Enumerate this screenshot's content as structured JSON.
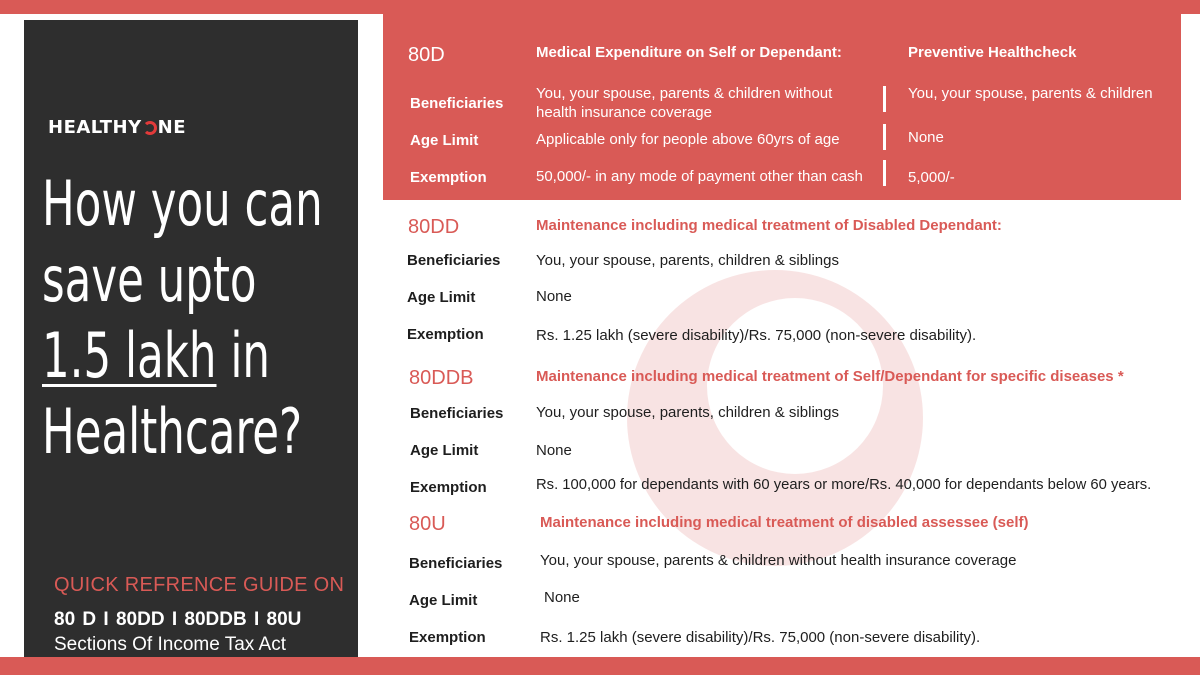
{
  "colors": {
    "accent": "#d95a56",
    "panel": "#2e2e2e",
    "text": "#1e1e1e"
  },
  "left": {
    "logo": {
      "before": "HEALTHY",
      "after": "NE",
      "icon": "crescent-o-icon"
    },
    "headline": {
      "line1": "How you can",
      "line2": "save upto",
      "line3_underlined": "1.5 lakh",
      "line3_rest": " in",
      "line4": "Healthcare?"
    },
    "guide_title": "QUICK REFRENCE GUIDE ON",
    "guide_sections": "80 D  I  80DD  I  80DDB  I  80U",
    "guide_sub": "Sections Of Income Tax Act"
  },
  "labels": {
    "beneficiaries": "Beneficiaries",
    "age_limit": "Age Limit",
    "exemption": "Exemption"
  },
  "s80d": {
    "code": "80D",
    "col1_title": "Medical Expenditure on Self or Dependant:",
    "col2_title": "Preventive Healthcheck",
    "beneficiaries_1": "You, your spouse, parents & children without",
    "beneficiaries_1b": "health insurance coverage",
    "beneficiaries_2": "You, your spouse, parents & children",
    "age_1": "Applicable only for people above 60yrs of age",
    "age_2": "None",
    "exemption_1": "50,000/- in any mode of payment other than cash",
    "exemption_2": "5,000/-"
  },
  "s80dd": {
    "code": "80DD",
    "title": "Maintenance including medical treatment of Disabled Dependant:",
    "beneficiaries": "You, your spouse, parents, children & siblings",
    "age": "None",
    "exemption": "Rs. 1.25 lakh (severe disability)/Rs. 75,000 (non-severe disability)."
  },
  "s80ddb": {
    "code": "80DDB",
    "title": "Maintenance including medical treatment of Self/Dependant for specific diseases *",
    "beneficiaries": "You, your spouse, parents, children & siblings",
    "age": "None",
    "exemption": "Rs. 100,000 for dependants with 60 years or more/Rs. 40,000 for dependants below 60 years."
  },
  "s80u": {
    "code": "80U",
    "title": "Maintenance including medical treatment of disabled assessee (self)",
    "beneficiaries": "You, your spouse, parents & children without health insurance coverage",
    "age": "None",
    "exemption": "Rs. 1.25 lakh (severe disability)/Rs. 75,000 (non-severe disability)."
  }
}
